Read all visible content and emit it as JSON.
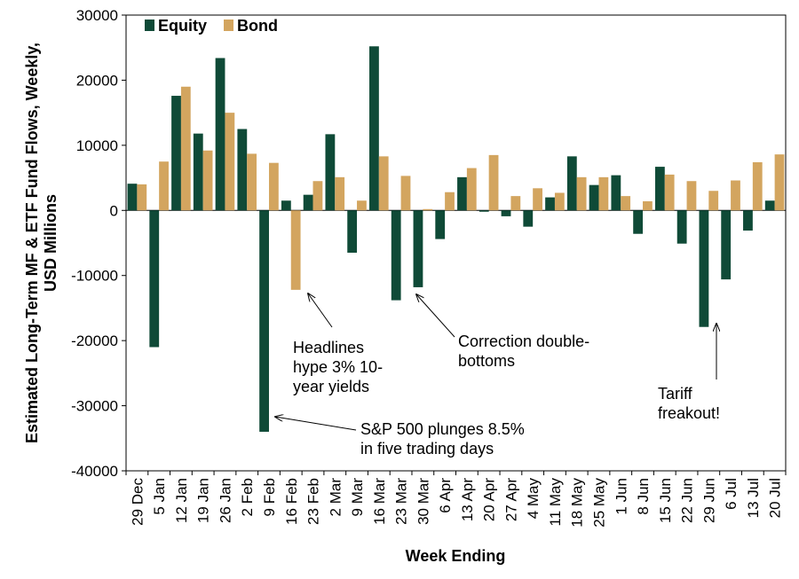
{
  "chart_data": {
    "type": "bar",
    "ylabel": [
      "Estimated Long-Term MF & ETF Fund Flows, Weekly,",
      "USD Millions"
    ],
    "xlabel": "Week Ending",
    "ylim": [
      -40000,
      30000
    ],
    "yticks": [
      30000,
      20000,
      10000,
      0,
      -10000,
      -20000,
      -30000,
      -40000
    ],
    "ytick_labels": [
      "30000",
      "20000",
      "10000",
      "0",
      "-10000",
      "-20000",
      "-30000",
      "-40000"
    ],
    "grid": false,
    "legend_position": "top-left",
    "categories": [
      "29 Dec",
      "5 Jan",
      "12 Jan",
      "19 Jan",
      "26 Jan",
      "2 Feb",
      "9 Feb",
      "16 Feb",
      "23 Feb",
      "2 Mar",
      "9 Mar",
      "16 Mar",
      "23 Mar",
      "30 Mar",
      "6 Apr",
      "13 Apr",
      "20 Apr",
      "27 Apr",
      "4 May",
      "11 May",
      "18 May",
      "25 May",
      "1 Jun",
      "8 Jun",
      "15 Jun",
      "22 Jun",
      "29 Jun",
      "6 Jul",
      "13 Jul",
      "20 Jul"
    ],
    "series": [
      {
        "name": "Equity",
        "color": "#0f4a37",
        "values": [
          4100,
          -21000,
          17600,
          11800,
          23400,
          12500,
          -34000,
          1500,
          2400,
          11700,
          -6500,
          25200,
          -13800,
          -11800,
          -4400,
          5100,
          -200,
          -900,
          -2500,
          2000,
          8300,
          3900,
          5400,
          -3600,
          6700,
          -5100,
          -17900,
          -10600,
          -3100,
          1500
        ]
      },
      {
        "name": "Bond",
        "color": "#d3a55f",
        "values": [
          4000,
          7500,
          19000,
          9200,
          15000,
          8700,
          7300,
          -12200,
          4500,
          5100,
          1500,
          8300,
          5300,
          200,
          2800,
          6500,
          8500,
          2200,
          3400,
          2700,
          5100,
          5100,
          2200,
          1400,
          5500,
          4500,
          3000,
          4600,
          7400,
          8600
        ]
      }
    ],
    "annotations": [
      {
        "lines": [
          "Headlines",
          "hype 3% 10-",
          "year yields"
        ],
        "target_series": "Bond",
        "target_category": "16 Feb"
      },
      {
        "lines": [
          "Correction double-",
          "bottoms"
        ],
        "target_series": "Equity",
        "target_category": "30 Mar"
      },
      {
        "lines": [
          "S&P 500 plunges  8.5%",
          "in five trading days"
        ],
        "target_series": "Equity",
        "target_category": "9 Feb"
      },
      {
        "lines": [
          "Tariff",
          "freakout!"
        ],
        "target_series": "Equity",
        "target_category": "29 Jun"
      }
    ]
  }
}
